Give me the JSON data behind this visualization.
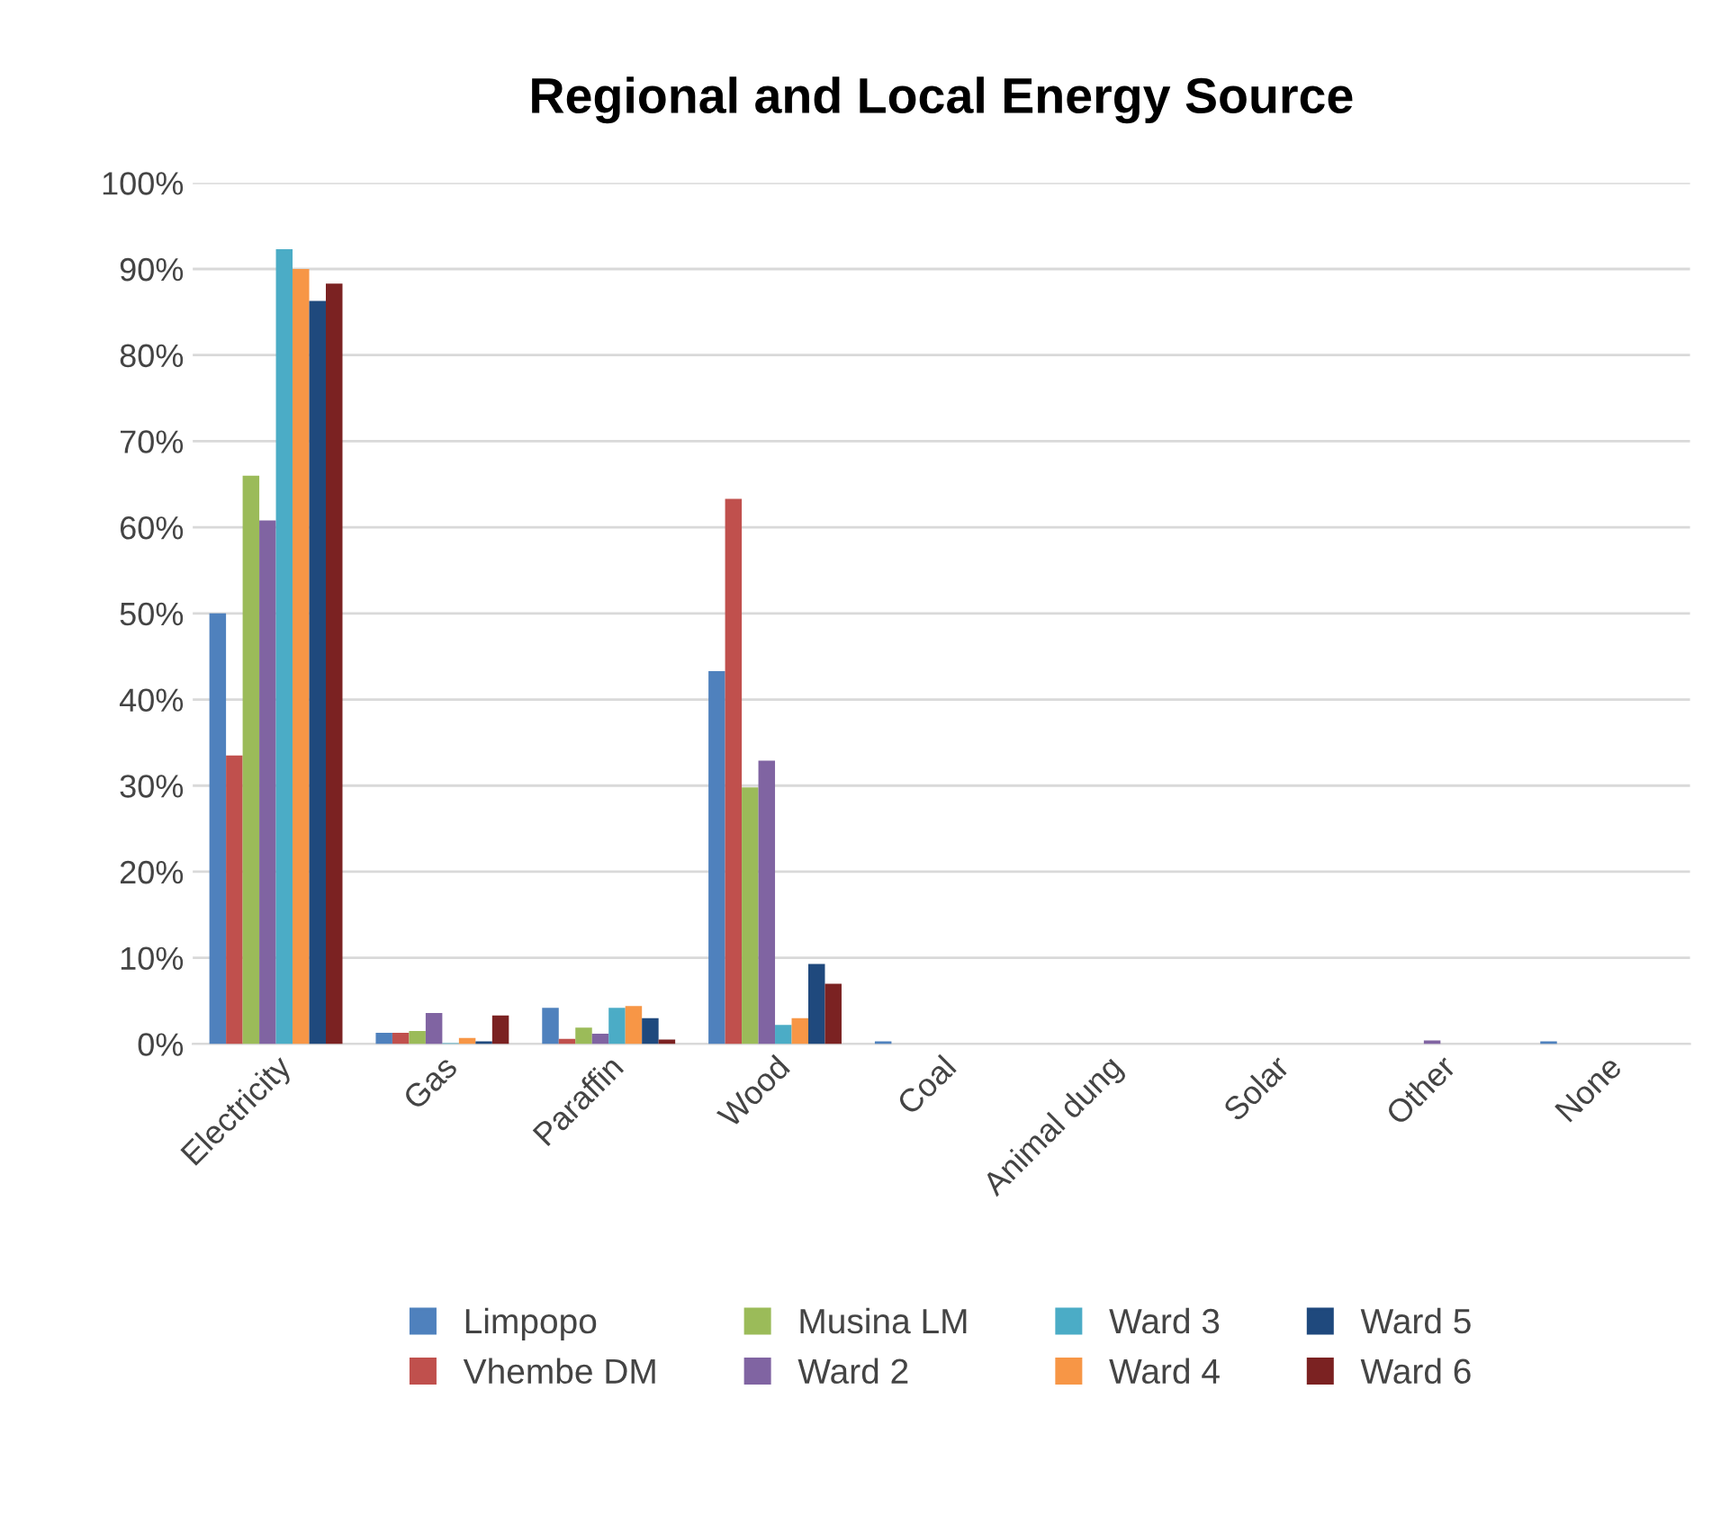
{
  "chart_data": {
    "type": "bar",
    "title": "Regional and Local Energy Source",
    "categories": [
      "Electricity",
      "Gas",
      "Paraffin",
      "Wood",
      "Coal",
      "Animal dung",
      "Solar",
      "Other",
      "None"
    ],
    "series": [
      {
        "name": "Limpopo",
        "color": "#4f81bd",
        "values": [
          50,
          1.3,
          4.2,
          43.3,
          0.3,
          0,
          0,
          0,
          0.3
        ]
      },
      {
        "name": "Vhembe DM",
        "color": "#c0504d",
        "values": [
          33.5,
          1.3,
          0.6,
          63.3,
          0,
          0,
          0,
          0,
          0
        ]
      },
      {
        "name": "Musina LM",
        "color": "#9bbb59",
        "values": [
          66,
          1.5,
          1.9,
          29.8,
          0,
          0,
          0,
          0,
          0
        ]
      },
      {
        "name": "Ward 2",
        "color": "#8064a2",
        "values": [
          60.8,
          3.6,
          1.2,
          32.9,
          0,
          0,
          0,
          0.4,
          0
        ]
      },
      {
        "name": "Ward 3",
        "color": "#4bacc6",
        "values": [
          92.3,
          0.1,
          4.2,
          2.2,
          0,
          0,
          0,
          0,
          0
        ]
      },
      {
        "name": "Ward 4",
        "color": "#f79646",
        "values": [
          90,
          0.7,
          4.4,
          3,
          0,
          0,
          0,
          0,
          0
        ]
      },
      {
        "name": "Ward 5",
        "color": "#1f497d",
        "values": [
          86.3,
          0.3,
          3,
          9.3,
          0,
          0,
          0,
          0,
          0
        ]
      },
      {
        "name": "Ward 6",
        "color": "#7b2222",
        "values": [
          88.3,
          3.3,
          0.5,
          7,
          0,
          0,
          0,
          0,
          0
        ]
      }
    ],
    "ylim": [
      0,
      100
    ],
    "yticks": [
      {
        "value": 0,
        "label": "0%"
      },
      {
        "value": 10,
        "label": "10%"
      },
      {
        "value": 20,
        "label": "20%"
      },
      {
        "value": 30,
        "label": "30%"
      },
      {
        "value": 40,
        "label": "40%"
      },
      {
        "value": 50,
        "label": "50%"
      },
      {
        "value": 60,
        "label": "60%"
      },
      {
        "value": 70,
        "label": "70%"
      },
      {
        "value": 80,
        "label": "80%"
      },
      {
        "value": 90,
        "label": "90%"
      },
      {
        "value": 100,
        "label": "100%"
      }
    ],
    "grid": "y",
    "legend": "bottom"
  }
}
